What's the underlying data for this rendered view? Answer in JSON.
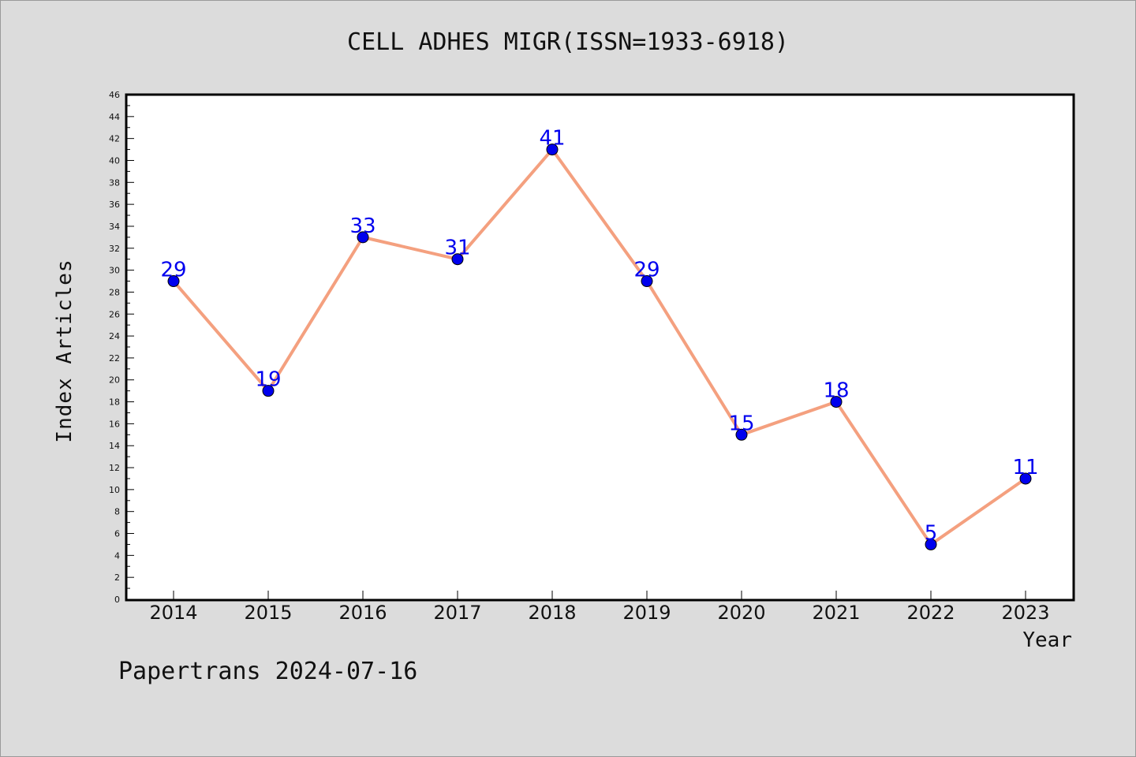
{
  "chart_data": {
    "type": "line",
    "title": "CELL ADHES MIGR(ISSN=1933-6918)",
    "xlabel": "Year",
    "ylabel": "Index Articles",
    "categories": [
      "2014",
      "2015",
      "2016",
      "2017",
      "2018",
      "2019",
      "2020",
      "2021",
      "2022",
      "2023"
    ],
    "series": [
      {
        "values": [
          29,
          19,
          33,
          31,
          41,
          29,
          15,
          18,
          5,
          11
        ]
      }
    ],
    "ylim": [
      0,
      46
    ],
    "ytick_step": 2,
    "grid": false,
    "line_color": "#f4a07f",
    "marker_color": "#0000ee",
    "label_color": "#0000ee"
  },
  "footer": {
    "watermark": "Papertrans 2024-07-16"
  },
  "colors": {
    "background": "#dcdcdc",
    "plot_background": "#ffffff",
    "axis": "#000000"
  }
}
